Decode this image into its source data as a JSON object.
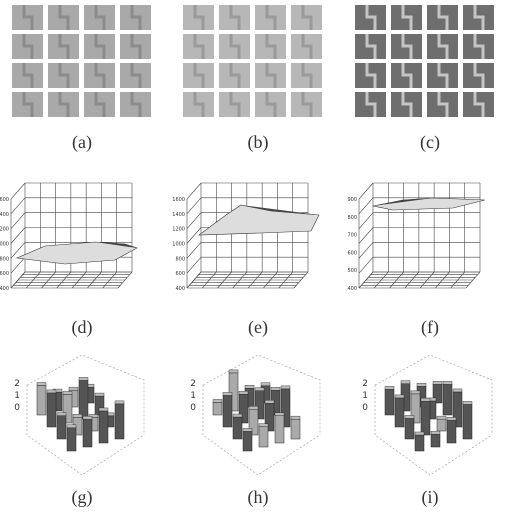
{
  "panels": [
    {
      "caption": "(a)"
    },
    {
      "caption": "(b)"
    },
    {
      "caption": "(c)"
    },
    {
      "caption": "(d)",
      "ticks": [
        "1600",
        "1400",
        "1200",
        "1000",
        "800",
        "600",
        "400"
      ]
    },
    {
      "caption": "(e)",
      "ticks": [
        "1600",
        "1400",
        "1200",
        "1000",
        "800",
        "600",
        "400"
      ]
    },
    {
      "caption": "(f)",
      "ticks": [
        "900",
        "800",
        "700",
        "600",
        "500",
        "400"
      ]
    },
    {
      "caption": "(g)",
      "ticks": [
        "2",
        "1",
        "0"
      ]
    },
    {
      "caption": "(h)",
      "ticks": [
        "2",
        "1",
        "0"
      ]
    },
    {
      "caption": "(i)",
      "ticks": [
        "2",
        "1",
        "0"
      ]
    }
  ]
}
